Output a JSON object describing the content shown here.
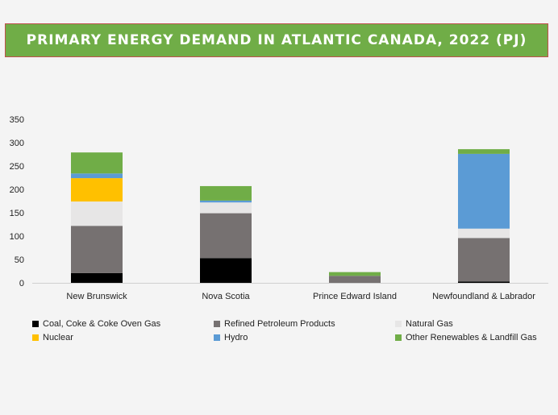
{
  "chart_data": {
    "type": "bar",
    "stacked": true,
    "title": "PRIMARY ENERGY DEMAND IN ATLANTIC CANADA, 2022 (PJ)",
    "xlabel": "",
    "ylabel": "",
    "ylim": [
      0,
      350
    ],
    "yticks": [
      0,
      50,
      100,
      150,
      200,
      250,
      300,
      350
    ],
    "categories": [
      "New Brunswick",
      "Nova Scotia",
      "Prince Edward Island",
      "Newfoundland & Labrador"
    ],
    "series": [
      {
        "name": "Coal, Coke & Coke Oven Gas",
        "color": "#000000",
        "values": [
          21,
          53,
          0,
          3
        ]
      },
      {
        "name": "Refined Petroleum Products",
        "color": "#767171",
        "values": [
          101,
          96,
          15,
          93
        ]
      },
      {
        "name": "Natural Gas",
        "color": "#e7e6e6",
        "values": [
          52,
          23,
          0,
          20
        ]
      },
      {
        "name": "Nuclear",
        "color": "#ffc000",
        "values": [
          50,
          0,
          0,
          0
        ]
      },
      {
        "name": "Hydro",
        "color": "#5b9bd5",
        "values": [
          10,
          4,
          0,
          160
        ]
      },
      {
        "name": "Other Renewables & Landfill Gas",
        "color": "#70ad47",
        "values": [
          45,
          31,
          8,
          10
        ]
      }
    ],
    "legend_position": "bottom",
    "grid": false
  }
}
